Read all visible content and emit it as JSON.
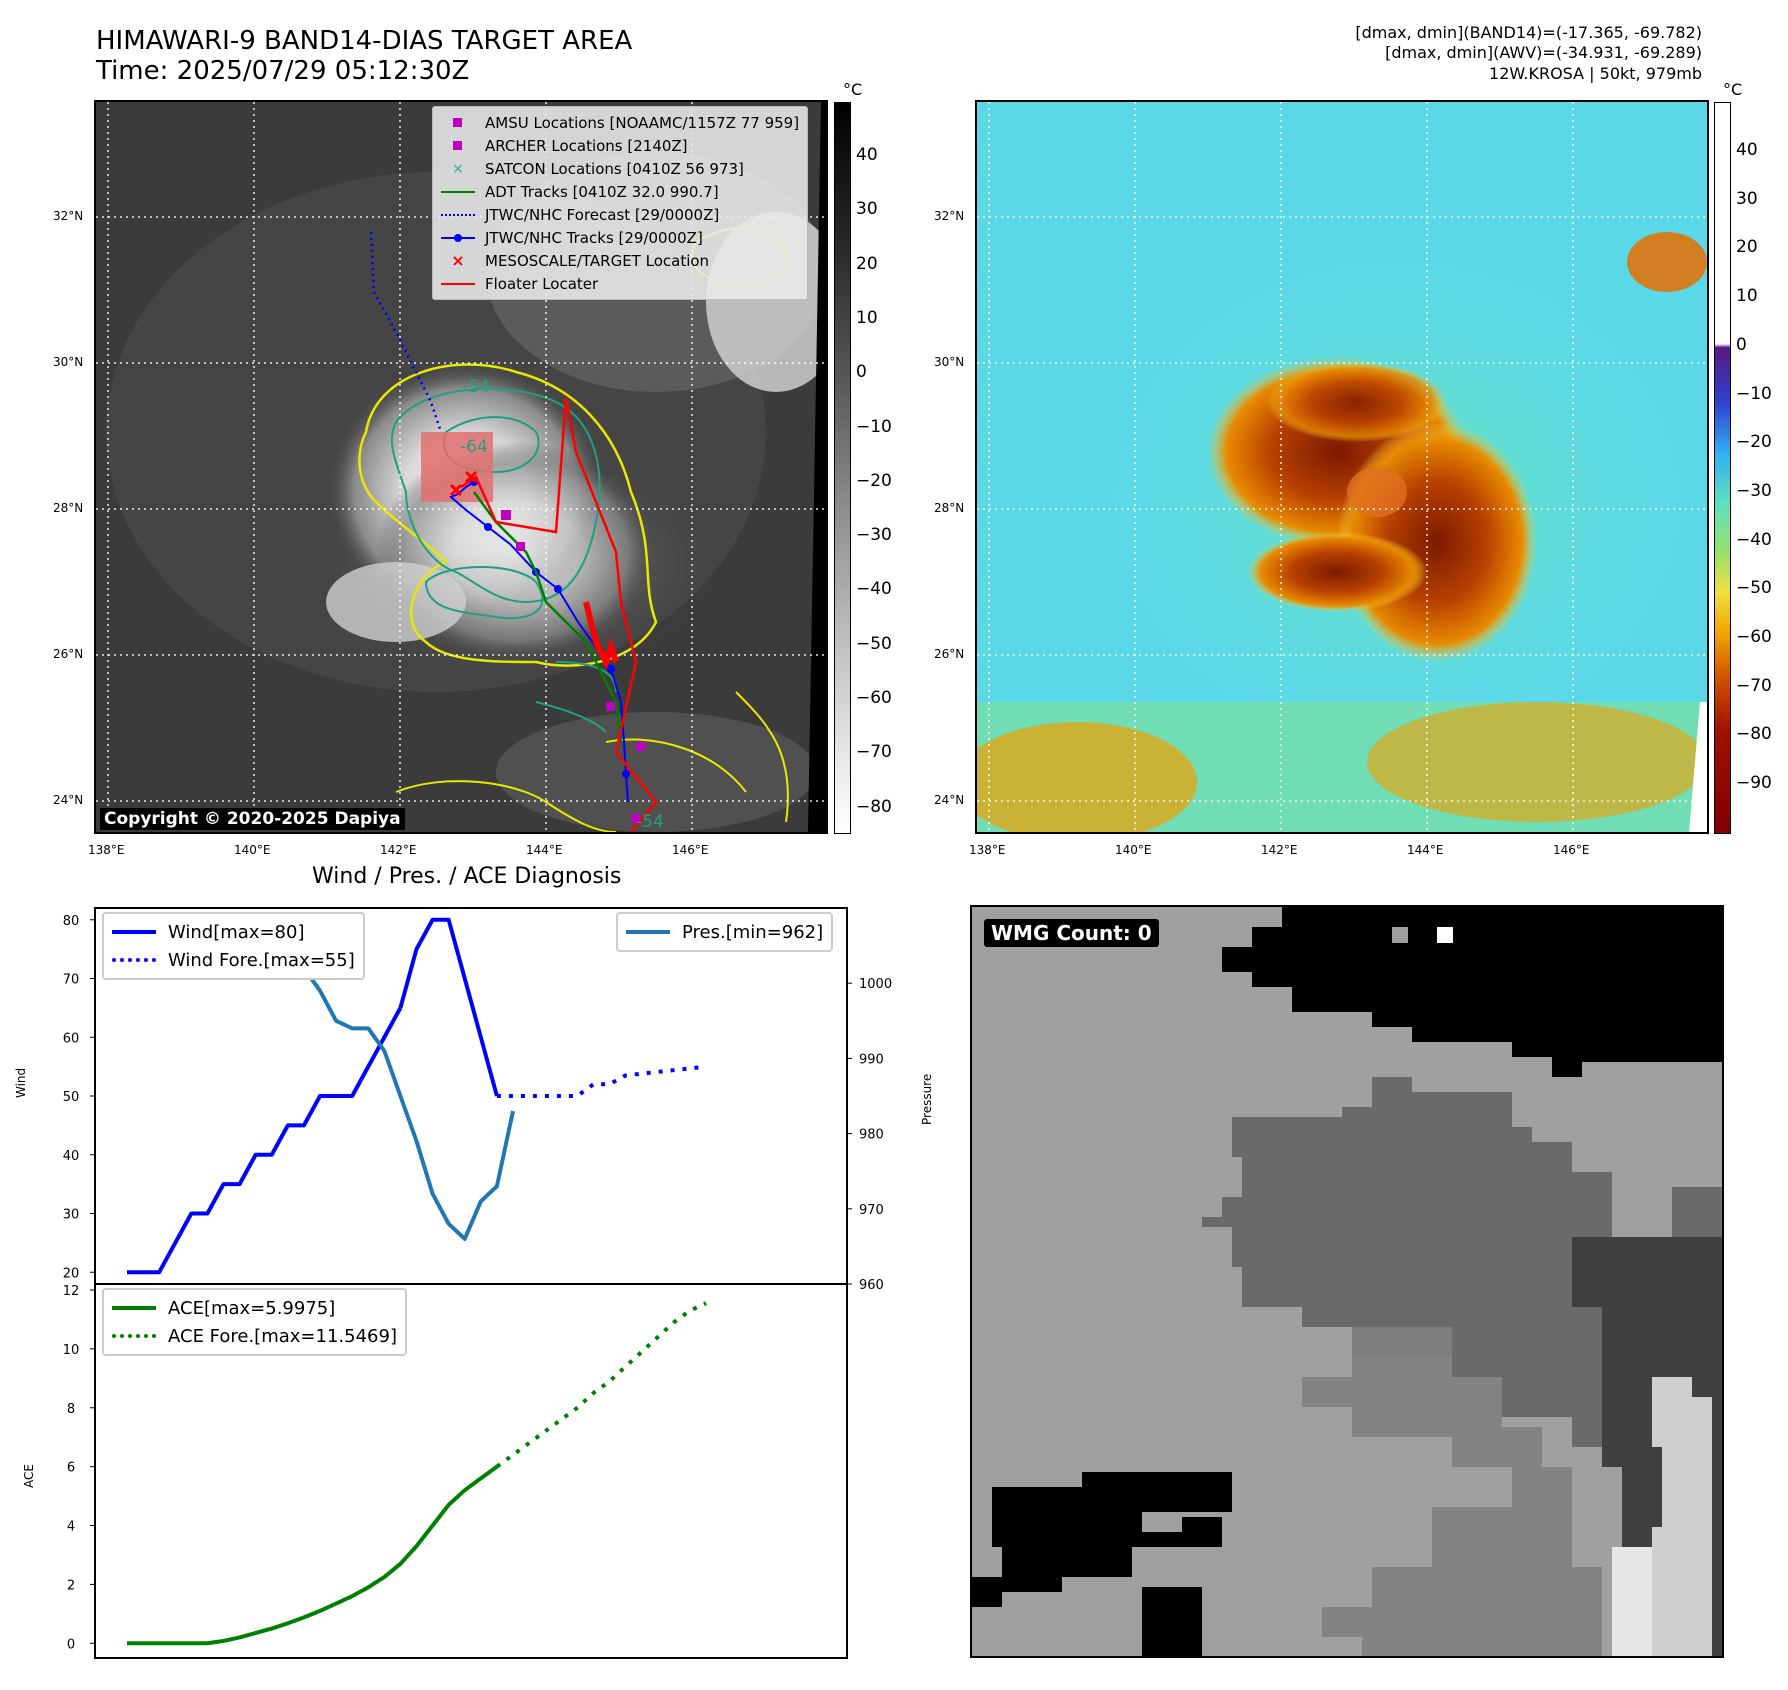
{
  "header": {
    "title_line1": "HIMAWARI-9 BAND14-DIAS TARGET AREA",
    "title_line2": "Time: 2025/07/29 05:12:30Z",
    "info_line1": "[dmax, dmin](BAND14)=(-17.365, -69.782)",
    "info_line2": "[dmax, dmin](AWV)=(-34.931, -69.289)",
    "info_line3": "12W.KROSA | 50kt, 979mb"
  },
  "map_axes": {
    "lon_ticks": [
      "138°E",
      "140°E",
      "142°E",
      "144°E",
      "146°E"
    ],
    "lat_ticks": [
      "32°N",
      "30°N",
      "28°N",
      "26°N",
      "24°N"
    ]
  },
  "ir_panel": {
    "legend": [
      {
        "label": "AMSU Locations [NOAAMC/1157Z 77 959]",
        "color": "#c000c0",
        "kind": "square"
      },
      {
        "label": "ARCHER Locations [2140Z]",
        "color": "#c000c0",
        "kind": "square"
      },
      {
        "label": "SATCON Locations [0410Z 56 973]",
        "color": "#20b2aa",
        "kind": "cross"
      },
      {
        "label": "ADT Tracks [0410Z 32.0 990.7]",
        "color": "#008000",
        "kind": "line"
      },
      {
        "label": "JTWC/NHC Forecast [29/0000Z]",
        "color": "#0000ff",
        "kind": "dotted"
      },
      {
        "label": "JTWC/NHC Tracks [29/0000Z]",
        "color": "#0000ff",
        "kind": "line-dot"
      },
      {
        "label": "MESOSCALE/TARGET Location",
        "color": "#ff0000",
        "kind": "cross"
      },
      {
        "label": "Floater Locater",
        "color": "#ff0000",
        "kind": "line"
      }
    ],
    "contour_labels": [
      "-54",
      "-64",
      "-54",
      "-54",
      "-54"
    ],
    "copyright": "Copyright © 2020-2025 Dapiya",
    "colorbar_unit": "°C",
    "colorbar_ticks": [
      "40",
      "30",
      "20",
      "10",
      "0",
      "−10",
      "−20",
      "−30",
      "−40",
      "−50",
      "−60",
      "−70",
      "−80"
    ]
  },
  "awv_panel": {
    "colorbar_unit": "°C",
    "colorbar_ticks": [
      "40",
      "30",
      "20",
      "10",
      "0",
      "−10",
      "−20",
      "−30",
      "−40",
      "−50",
      "−60",
      "−70",
      "−80",
      "−90"
    ]
  },
  "wmg_panel": {
    "badge": "WMG Count: 0"
  },
  "chart_data": [
    {
      "type": "line",
      "title": "Wind / Pres. / ACE Diagnosis",
      "ylabel": "Wind",
      "y2label": "Pressure",
      "ylim": [
        18,
        82
      ],
      "y2lim": [
        960,
        1010
      ],
      "yticks": [
        "80",
        "70",
        "60",
        "50",
        "40",
        "30",
        "20"
      ],
      "y2ticks": [
        "1000",
        "990",
        "980",
        "970",
        "960"
      ],
      "series": [
        {
          "name": "Wind[max=80]",
          "color": "#0000ff",
          "style": "solid",
          "x": [
            0,
            1,
            2,
            3,
            4,
            5,
            6,
            7,
            8,
            9,
            10,
            11,
            12,
            13,
            14,
            15,
            16,
            17
          ],
          "values": [
            20,
            20,
            20,
            25,
            30,
            30,
            35,
            35,
            40,
            40,
            45,
            45,
            50,
            50,
            50,
            55,
            60,
            65
          ]
        },
        {
          "name": "Wind[max=80]",
          "color": "#0000ff",
          "style": "solid",
          "x": [
            17,
            18,
            19,
            20,
            21,
            22,
            23
          ],
          "values": [
            65,
            75,
            80,
            80,
            70,
            60,
            50
          ]
        },
        {
          "name": "Wind Fore.[max=55]",
          "color": "#0000ff",
          "style": "dotted",
          "x": [
            23,
            24,
            27,
            28,
            29,
            30,
            31,
            36
          ],
          "values": [
            50,
            50,
            50,
            50,
            52,
            52,
            53.5,
            55
          ]
        },
        {
          "name": "Pres.[min=962]",
          "color": "#1f77b4",
          "style": "solid",
          "axis": "right",
          "x": [
            0,
            1,
            2,
            3,
            4,
            5,
            6,
            7,
            8,
            9,
            10,
            11,
            12,
            13,
            14,
            15,
            16,
            17,
            18,
            19,
            20,
            21,
            22,
            23,
            24
          ],
          "values": [
            1008,
            1008,
            1008,
            1006,
            1006,
            1005,
            1005,
            1003,
            1003,
            1002,
            1002,
            1002,
            999,
            995,
            994,
            994,
            991,
            985,
            979,
            972,
            968,
            966,
            971,
            973,
            983
          ]
        }
      ]
    },
    {
      "type": "line",
      "ylabel": "ACE",
      "ylim": [
        -0.5,
        12
      ],
      "yticks": [
        "12",
        "10",
        "8",
        "6",
        "4",
        "2",
        "0"
      ],
      "series": [
        {
          "name": "ACE[max=5.9975]",
          "color": "#008000",
          "style": "solid",
          "x": [
            0,
            1,
            2,
            3,
            4,
            5,
            6,
            7,
            8,
            9,
            10,
            11,
            12,
            13,
            14,
            15,
            16,
            17,
            18,
            19,
            20,
            21,
            22,
            23
          ],
          "values": [
            0,
            0,
            0,
            0,
            0,
            0,
            0.08,
            0.2,
            0.35,
            0.5,
            0.68,
            0.88,
            1.1,
            1.35,
            1.6,
            1.9,
            2.25,
            2.7,
            3.3,
            4.0,
            4.7,
            5.2,
            5.6,
            6.0
          ]
        },
        {
          "name": "ACE Fore.[max=11.5469]",
          "color": "#008000",
          "style": "dotted",
          "x": [
            23,
            24,
            25,
            26,
            27,
            28,
            29,
            30,
            31,
            32,
            33,
            34,
            35,
            36
          ],
          "values": [
            6.0,
            6.4,
            6.8,
            7.2,
            7.6,
            8.0,
            8.5,
            8.9,
            9.4,
            9.9,
            10.4,
            10.9,
            11.3,
            11.55
          ]
        }
      ]
    }
  ]
}
